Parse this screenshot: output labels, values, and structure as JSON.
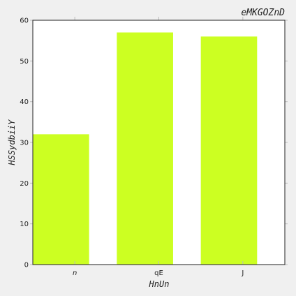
{
  "chart_data": {
    "type": "bar",
    "title": "eMKGOZnD",
    "xlabel": "HnUn",
    "ylabel": "HSSydbiiY",
    "categories": [
      "n",
      "qE",
      "J"
    ],
    "values": [
      32,
      57,
      56
    ],
    "ylim": [
      0,
      60
    ],
    "yticks": [
      0,
      10,
      20,
      30,
      40,
      50,
      60
    ],
    "bar_color": "#ccff22",
    "grid": false
  }
}
